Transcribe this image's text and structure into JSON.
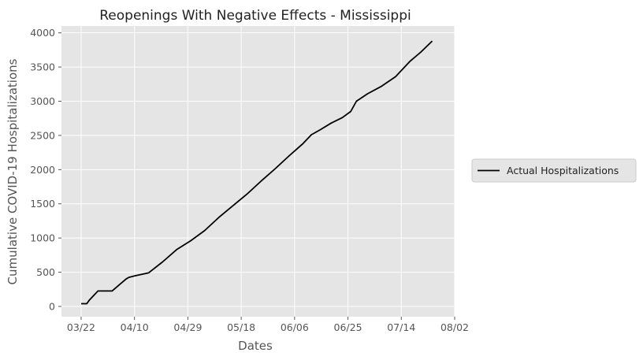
{
  "chart_data": {
    "type": "line",
    "title": "Reopenings With Negative Effects - Mississippi",
    "xlabel": "Dates",
    "ylabel": "Cumulative COVID-19 Hospitalizations",
    "x_tick_labels": [
      "03/22",
      "04/10",
      "04/29",
      "05/18",
      "06/06",
      "06/25",
      "07/14",
      "08/02"
    ],
    "y_tick_labels": [
      "0",
      "500",
      "1000",
      "1500",
      "2000",
      "2500",
      "3000",
      "3500",
      "4000"
    ],
    "xlim": [
      "2020-03-15",
      "2020-08-02"
    ],
    "ylim": [
      -150,
      4100
    ],
    "grid": true,
    "legend_position": "outside-right",
    "colors": {
      "background": "#e5e5e5",
      "grid": "#ffffff",
      "line": "#000000"
    },
    "series": [
      {
        "name": "Actual Hospitalizations",
        "x": [
          "2020-03-22",
          "2020-03-24",
          "2020-03-25",
          "2020-03-28",
          "2020-04-02",
          "2020-04-05",
          "2020-04-07",
          "2020-04-08",
          "2020-04-10",
          "2020-04-15",
          "2020-04-20",
          "2020-04-25",
          "2020-04-30",
          "2020-05-05",
          "2020-05-10",
          "2020-05-15",
          "2020-05-20",
          "2020-05-25",
          "2020-05-30",
          "2020-06-04",
          "2020-06-09",
          "2020-06-12",
          "2020-06-15",
          "2020-06-19",
          "2020-06-23",
          "2020-06-26",
          "2020-06-28",
          "2020-07-02",
          "2020-07-07",
          "2020-07-12",
          "2020-07-17",
          "2020-07-21",
          "2020-07-25"
        ],
        "values": [
          40,
          40,
          95,
          225,
          225,
          330,
          400,
          425,
          445,
          490,
          650,
          830,
          960,
          1110,
          1300,
          1470,
          1640,
          1830,
          2010,
          2200,
          2380,
          2510,
          2580,
          2680,
          2760,
          2850,
          3000,
          3110,
          3220,
          3360,
          3580,
          3720,
          3880
        ]
      }
    ]
  }
}
